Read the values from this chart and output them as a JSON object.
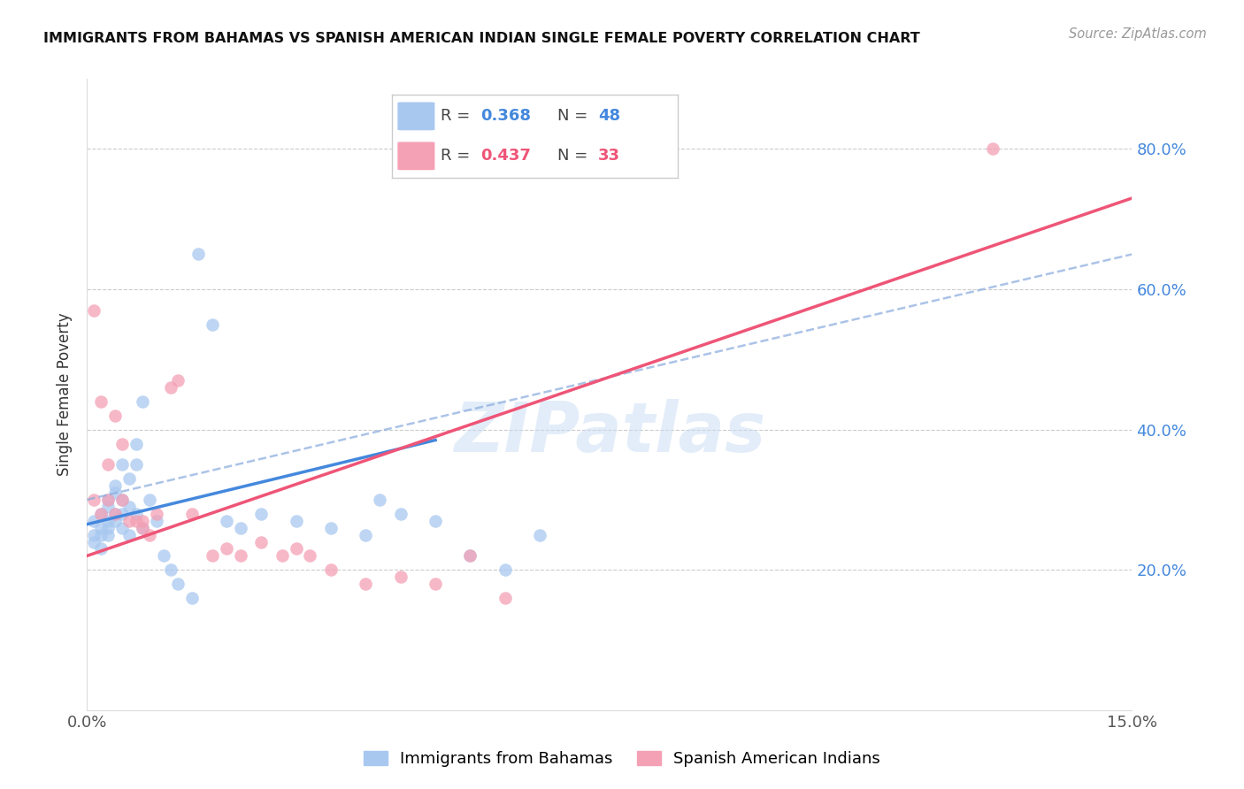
{
  "title": "IMMIGRANTS FROM BAHAMAS VS SPANISH AMERICAN INDIAN SINGLE FEMALE POVERTY CORRELATION CHART",
  "source": "Source: ZipAtlas.com",
  "ylabel": "Single Female Poverty",
  "xlim": [
    0.0,
    0.15
  ],
  "ylim": [
    0.0,
    0.9
  ],
  "yticks": [
    0.2,
    0.4,
    0.6,
    0.8
  ],
  "ytick_labels": [
    "20.0%",
    "40.0%",
    "60.0%",
    "80.0%"
  ],
  "xticks": [
    0.0,
    0.03,
    0.06,
    0.09,
    0.12,
    0.15
  ],
  "xtick_labels": [
    "0.0%",
    "",
    "",
    "",
    "",
    "15.0%"
  ],
  "blue_R": 0.368,
  "blue_N": 48,
  "pink_R": 0.437,
  "pink_N": 33,
  "blue_color": "#A8C8F0",
  "pink_color": "#F4A0B5",
  "blue_line_color": "#4488DD",
  "pink_line_color": "#EE5577",
  "dash_line_color": "#88AADD",
  "watermark": "ZIPatlas",
  "blue_scatter_x": [
    0.001,
    0.001,
    0.001,
    0.002,
    0.002,
    0.002,
    0.002,
    0.003,
    0.003,
    0.003,
    0.003,
    0.003,
    0.004,
    0.004,
    0.004,
    0.004,
    0.005,
    0.005,
    0.005,
    0.005,
    0.006,
    0.006,
    0.006,
    0.007,
    0.007,
    0.007,
    0.008,
    0.008,
    0.009,
    0.01,
    0.011,
    0.012,
    0.013,
    0.015,
    0.016,
    0.018,
    0.02,
    0.022,
    0.025,
    0.03,
    0.035,
    0.04,
    0.042,
    0.045,
    0.05,
    0.055,
    0.06,
    0.065
  ],
  "blue_scatter_y": [
    0.25,
    0.27,
    0.24,
    0.28,
    0.26,
    0.25,
    0.23,
    0.29,
    0.27,
    0.26,
    0.3,
    0.25,
    0.32,
    0.28,
    0.27,
    0.31,
    0.35,
    0.3,
    0.28,
    0.26,
    0.33,
    0.29,
    0.25,
    0.38,
    0.35,
    0.28,
    0.44,
    0.26,
    0.3,
    0.27,
    0.22,
    0.2,
    0.18,
    0.16,
    0.65,
    0.55,
    0.27,
    0.26,
    0.28,
    0.27,
    0.26,
    0.25,
    0.3,
    0.28,
    0.27,
    0.22,
    0.2,
    0.25
  ],
  "pink_scatter_x": [
    0.001,
    0.001,
    0.002,
    0.002,
    0.003,
    0.003,
    0.004,
    0.004,
    0.005,
    0.005,
    0.006,
    0.007,
    0.008,
    0.008,
    0.009,
    0.01,
    0.012,
    0.013,
    0.015,
    0.018,
    0.02,
    0.022,
    0.025,
    0.028,
    0.03,
    0.032,
    0.035,
    0.04,
    0.045,
    0.05,
    0.055,
    0.06,
    0.13
  ],
  "pink_scatter_y": [
    0.57,
    0.3,
    0.44,
    0.28,
    0.35,
    0.3,
    0.42,
    0.28,
    0.38,
    0.3,
    0.27,
    0.27,
    0.26,
    0.27,
    0.25,
    0.28,
    0.46,
    0.47,
    0.28,
    0.22,
    0.23,
    0.22,
    0.24,
    0.22,
    0.23,
    0.22,
    0.2,
    0.18,
    0.19,
    0.18,
    0.22,
    0.16,
    0.8
  ],
  "blue_line_x": [
    0.0,
    0.05
  ],
  "blue_line_y": [
    0.265,
    0.385
  ],
  "pink_line_x": [
    0.0,
    0.15
  ],
  "pink_line_y": [
    0.22,
    0.73
  ],
  "dash_line_x": [
    0.0,
    0.15
  ],
  "dash_line_y": [
    0.3,
    0.65
  ]
}
